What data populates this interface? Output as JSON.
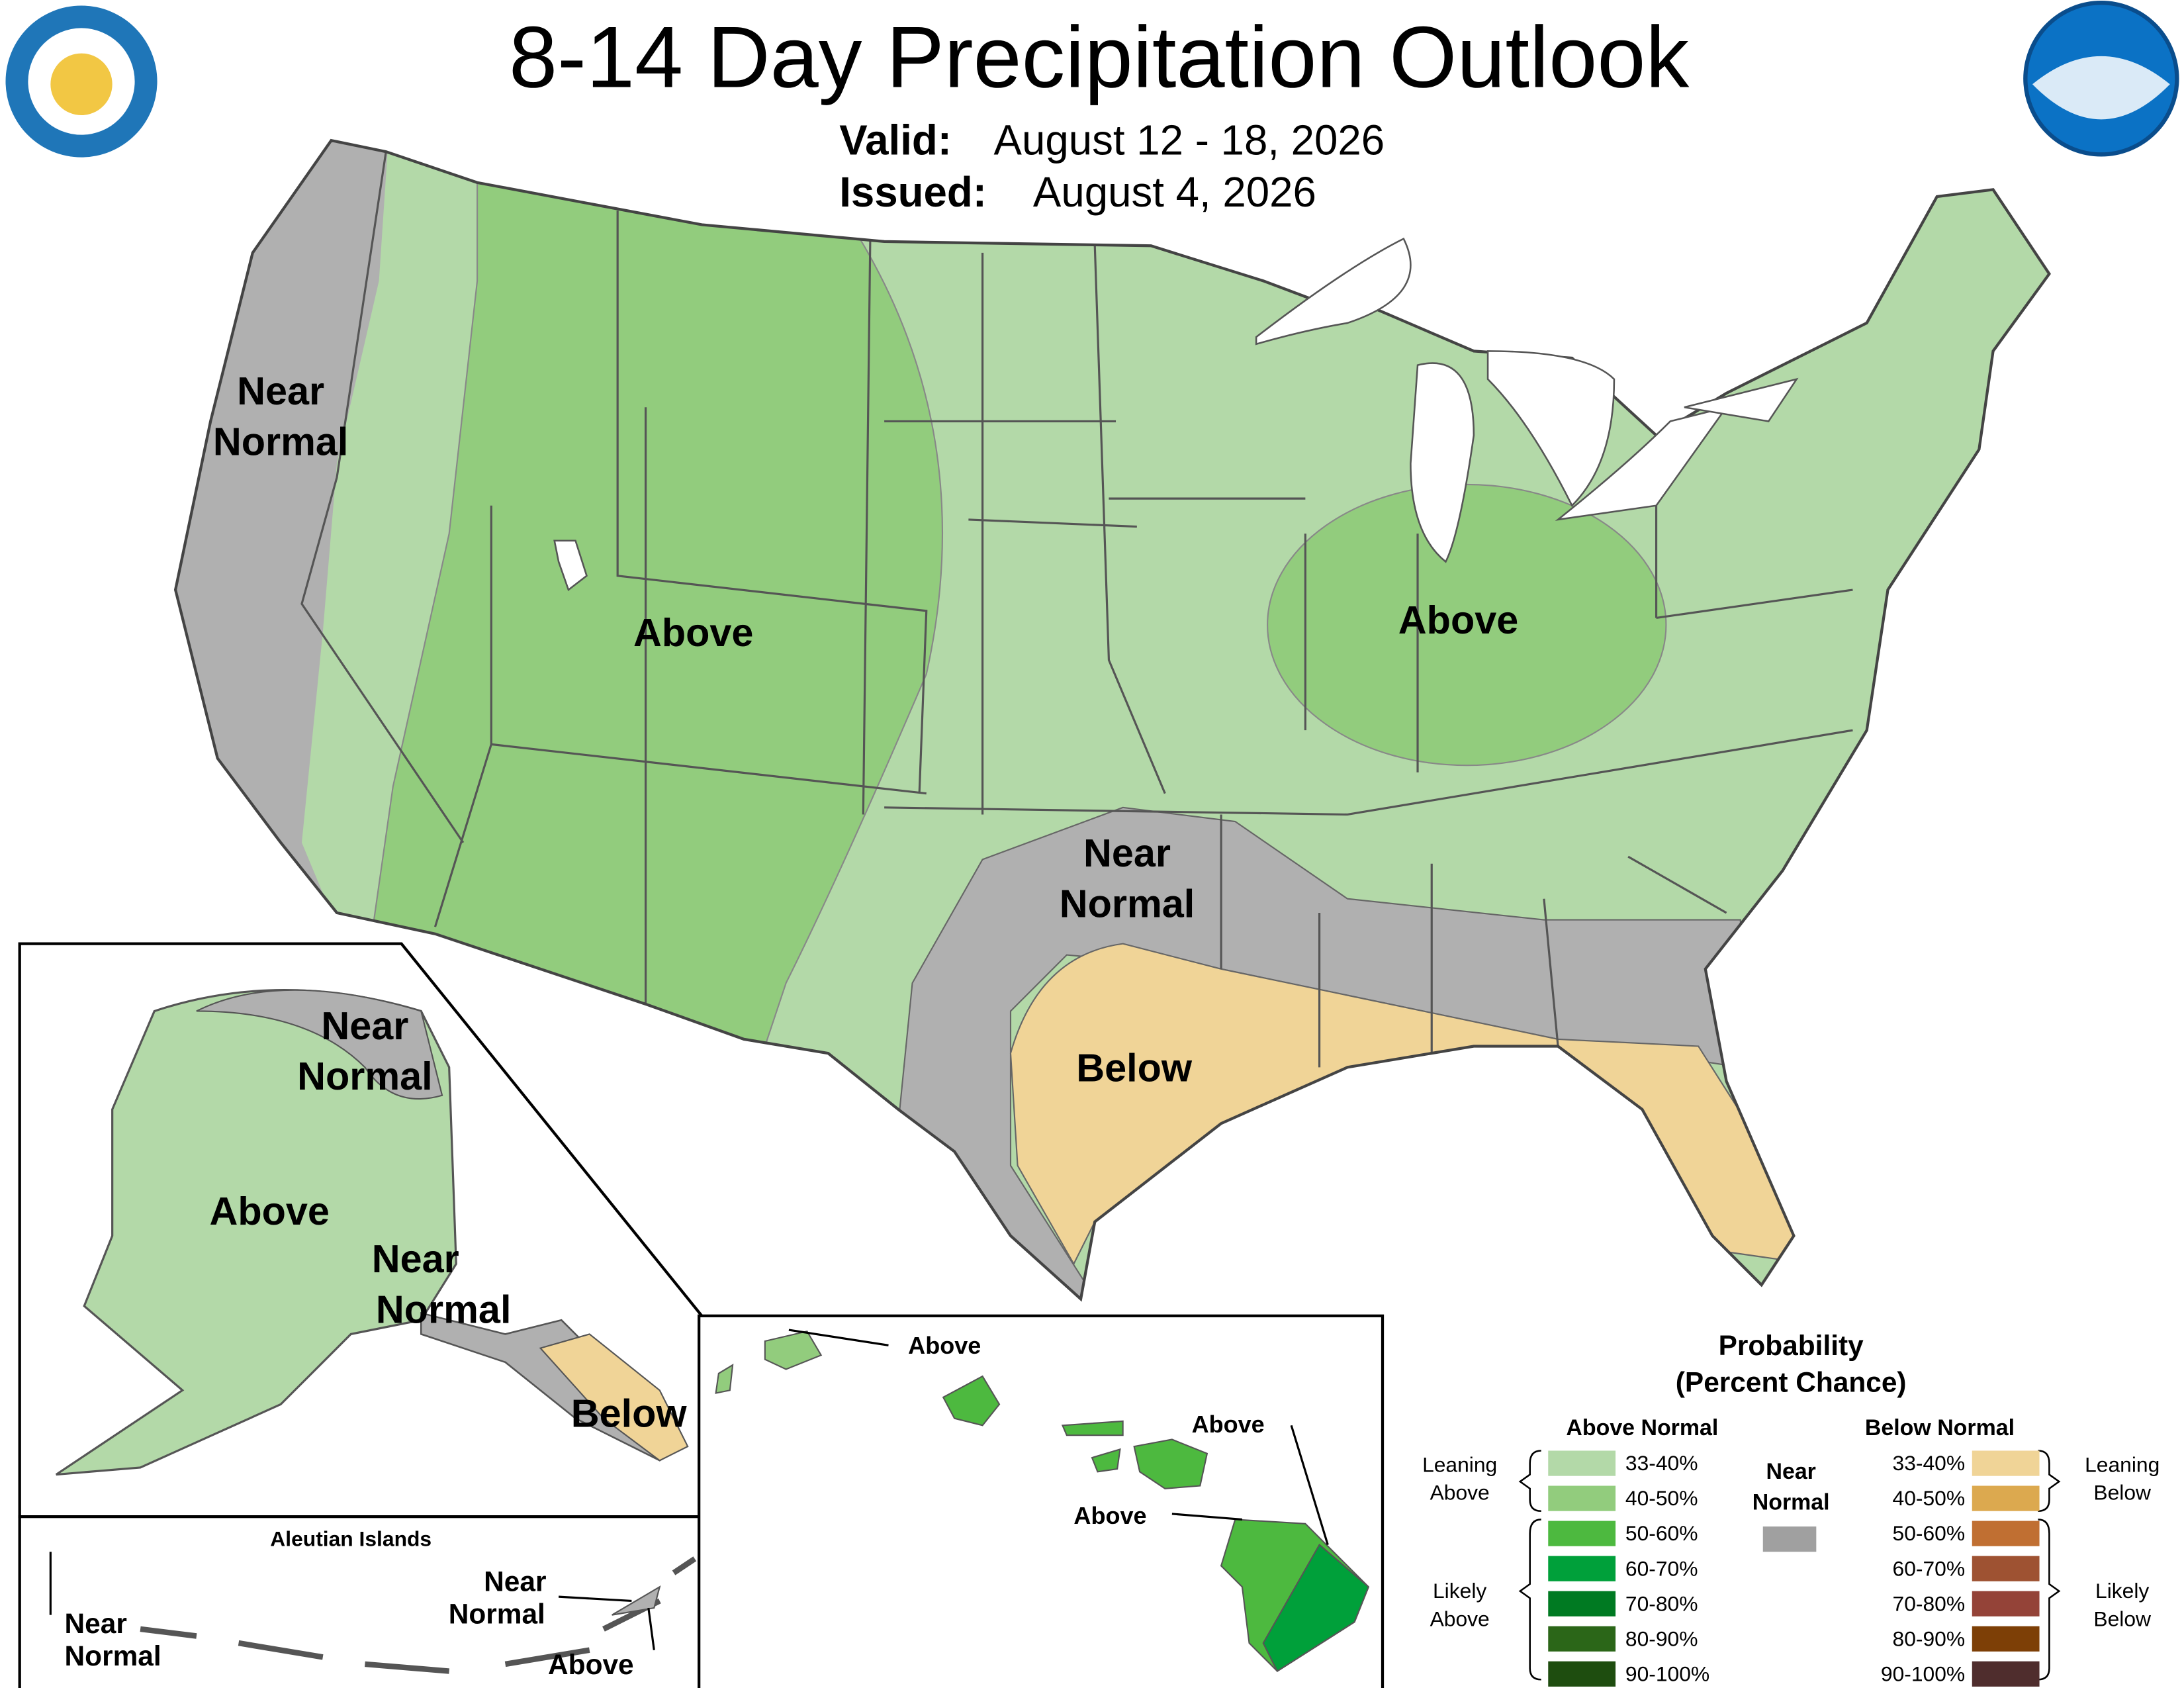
{
  "header": {
    "title": "8-14 Day Precipitation Outlook",
    "valid_label": "Valid:",
    "valid": "August 12 - 18, 2026",
    "issued_label": "Issued:",
    "issued": "August 4, 2026"
  },
  "conus": {
    "labels": [
      [
        "Near",
        "Normal"
      ],
      [
        "Above"
      ],
      [
        "Above"
      ],
      [
        "Near",
        "Normal"
      ],
      [
        "Below"
      ]
    ]
  },
  "alaska": {
    "labels": [
      [
        "Near",
        "Normal"
      ],
      [
        "Above"
      ],
      [
        "Near",
        "Normal"
      ],
      [
        "Below"
      ]
    ]
  },
  "aleutians": {
    "title": "Aleutian Islands",
    "labels": [
      [
        "Near",
        "Normal"
      ],
      [
        "Near",
        "Normal"
      ],
      [
        "Above"
      ]
    ]
  },
  "hawaii": {
    "labels": [
      "Above",
      "Above",
      "Above"
    ]
  },
  "legend": {
    "title": [
      "Probability",
      "(Percent Chance)"
    ],
    "above_header": "Above Normal",
    "below_header": "Below Normal",
    "near": [
      "Near",
      "Normal"
    ],
    "above_ranges": [
      "33-40%",
      "40-50%",
      "50-60%",
      "60-70%",
      "70-80%",
      "80-90%",
      "90-100%"
    ],
    "below_ranges": [
      "33-40%",
      "40-50%",
      "50-60%",
      "60-70%",
      "70-80%",
      "80-90%",
      "90-100%"
    ],
    "leaning_above": [
      "Leaning",
      "Above"
    ],
    "likely_above": [
      "Likely",
      "Above"
    ],
    "leaning_below": [
      "Leaning",
      "Below"
    ],
    "likely_below": [
      "Likely",
      "Below"
    ]
  }
}
